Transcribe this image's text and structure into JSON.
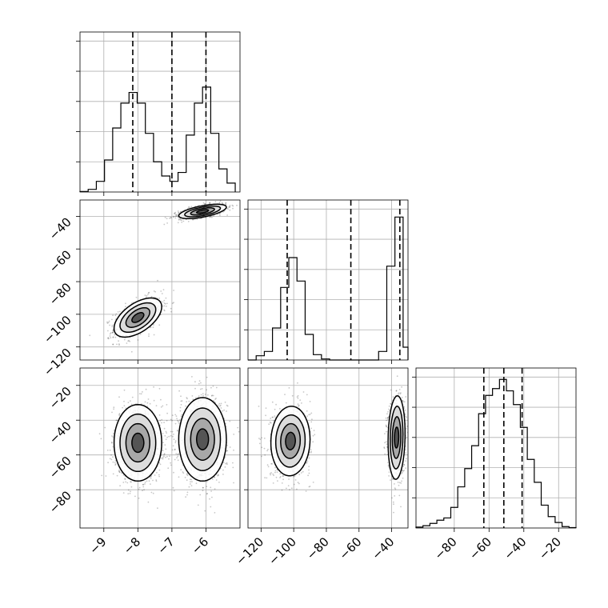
{
  "chart_data": [
    {
      "panel": "hist-p1",
      "type": "histogram",
      "xlim": [
        -9.7,
        -5.0
      ],
      "ylim": [
        0,
        0.9
      ],
      "bin_edges": [
        -9.7,
        -9.46,
        -9.22,
        -8.98,
        -8.74,
        -8.5,
        -8.26,
        -8.02,
        -7.78,
        -7.54,
        -7.3,
        -7.06,
        -6.82,
        -6.58,
        -6.34,
        -6.1,
        -5.86,
        -5.62,
        -5.38,
        -5.14
      ],
      "counts": [
        0.003,
        0.015,
        0.06,
        0.18,
        0.36,
        0.5,
        0.56,
        0.5,
        0.33,
        0.17,
        0.09,
        0.06,
        0.11,
        0.32,
        0.5,
        0.59,
        0.33,
        0.13,
        0.05
      ],
      "quantiles": [
        -8.15,
        -7.0,
        -6.0
      ]
    },
    {
      "panel": "hist-p2",
      "type": "histogram",
      "xlim": [
        -128,
        -30
      ],
      "ylim": [
        0,
        0.75
      ],
      "bin_edges": [
        -128,
        -123,
        -118,
        -113,
        -108,
        -103,
        -98,
        -93,
        -88,
        -83,
        -78,
        -73,
        -68,
        -63,
        -58,
        -53,
        -48,
        -43,
        -38,
        -33,
        -30
      ],
      "counts": [
        0.0,
        0.02,
        0.04,
        0.15,
        0.34,
        0.48,
        0.37,
        0.12,
        0.025,
        0.005,
        0.0,
        0.0,
        0.0,
        0.0,
        0.0,
        0.0,
        0.04,
        0.44,
        0.67,
        0.06
      ],
      "quantiles": [
        -104,
        -65,
        -35
      ]
    },
    {
      "panel": "hist-p3",
      "type": "histogram",
      "xlim": [
        -102,
        -10
      ],
      "ylim": [
        0,
        0.35
      ],
      "bin_edges": [
        -102,
        -98,
        -94,
        -90,
        -86,
        -82,
        -78,
        -74,
        -70,
        -66,
        -62,
        -58,
        -54,
        -50,
        -46,
        -42,
        -38,
        -34,
        -30,
        -26,
        -22,
        -18,
        -14,
        -10
      ],
      "counts": [
        0.002,
        0.005,
        0.01,
        0.017,
        0.022,
        0.045,
        0.09,
        0.13,
        0.18,
        0.25,
        0.29,
        0.305,
        0.325,
        0.3,
        0.27,
        0.22,
        0.15,
        0.1,
        0.05,
        0.025,
        0.012,
        0.003,
        0.001
      ],
      "quantiles": [
        -63,
        -51.5,
        -41
      ]
    },
    {
      "panel": "scatter-p1-p2",
      "type": "scatter",
      "xlim": [
        -9.7,
        -5.0
      ],
      "ylim": [
        -128,
        -30
      ],
      "clusters": [
        {
          "mean": [
            -8.0,
            -102
          ],
          "sd": [
            0.35,
            6
          ],
          "corr": 0.55,
          "count": 900
        },
        {
          "mean": [
            -6.1,
            -37
          ],
          "sd": [
            0.35,
            2.2
          ],
          "corr": 0.6,
          "count": 900
        }
      ]
    },
    {
      "panel": "scatter-p1-p3",
      "type": "scatter",
      "xlim": [
        -9.7,
        -5.0
      ],
      "ylim": [
        -102,
        -10
      ],
      "clusters": [
        {
          "mean": [
            -8.0,
            -53
          ],
          "sd": [
            0.35,
            11
          ],
          "corr": 0.0,
          "count": 1100
        },
        {
          "mean": [
            -6.1,
            -51
          ],
          "sd": [
            0.35,
            12
          ],
          "corr": 0.0,
          "count": 1100
        }
      ]
    },
    {
      "panel": "scatter-p2-p3",
      "type": "scatter",
      "xlim": [
        -128,
        -30
      ],
      "ylim": [
        -102,
        -10
      ],
      "clusters": [
        {
          "mean": [
            -102,
            -52
          ],
          "sd": [
            6,
            10
          ],
          "corr": 0.05,
          "count": 900
        },
        {
          "mean": [
            -37,
            -50
          ],
          "sd": [
            2.6,
            12
          ],
          "corr": 0.1,
          "count": 900
        }
      ]
    }
  ],
  "axes": {
    "x_p1": {
      "ticks": [
        -9,
        -8,
        -7,
        -6
      ],
      "labels": [
        "−9",
        "−8",
        "−7",
        "−6"
      ]
    },
    "x_p2": {
      "ticks": [
        -120,
        -100,
        -80,
        -60,
        -40
      ],
      "labels": [
        "−120",
        "−100",
        "−80",
        "−60",
        "−40"
      ]
    },
    "x_p3": {
      "ticks": [
        -80,
        -60,
        -40,
        -20
      ],
      "labels": [
        "−80",
        "−60",
        "−40",
        "−20"
      ]
    },
    "y_p2": {
      "ticks": [
        -40,
        -60,
        -80,
        -100,
        -120
      ],
      "labels": [
        "−40",
        "−60",
        "−80",
        "−100",
        "−120"
      ]
    },
    "y_p3": {
      "ticks": [
        -20,
        -40,
        -60,
        -80
      ],
      "labels": [
        "−20",
        "−40",
        "−60",
        "−80"
      ]
    }
  }
}
